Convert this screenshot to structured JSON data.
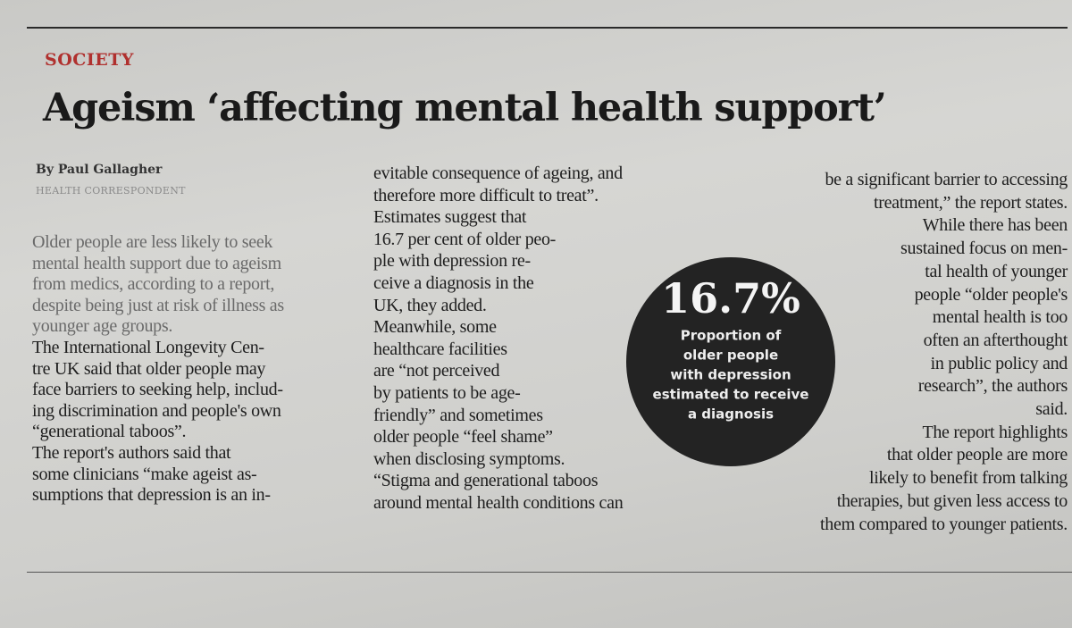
{
  "section": "SOCIETY",
  "headline": "Ageism ‘affecting mental health support’",
  "byline": "By Paul Gallagher",
  "role": "HEALTH CORRESPONDENT",
  "columns": [
    [
      "Older people are less likely to seek",
      "mental health support due to ageism",
      "from medics, according to a report,",
      "despite being just at risk of illness as",
      "younger age groups.",
      "The International Longevity Cen-",
      "tre UK said that older people may",
      "face barriers to seeking help, includ-",
      "ing discrimination and people's own",
      "“generational taboos”.",
      "The report's authors said that",
      "some clinicians “make ageist as-",
      "sumptions that depression is an in-"
    ],
    [
      "evitable consequence of ageing, and",
      "therefore more difficult to treat”.",
      "Estimates suggest that",
      "16.7 per cent of older peo-",
      "ple with depression re-",
      "ceive a diagnosis in the",
      "UK, they added.",
      "Meanwhile, some",
      "healthcare facilities",
      "are “not perceived",
      "by patients to be age-",
      "friendly” and sometimes",
      "older people “feel shame”",
      "when disclosing symptoms.",
      "“Stigma and generational taboos",
      "around mental health conditions can"
    ],
    [
      "be a significant barrier to accessing",
      "treatment,” the report states.",
      "While there has been",
      "sustained focus on men-",
      "tal health of younger",
      "people “older people's",
      "mental health is too",
      "often an afterthought",
      "in public policy and",
      "research”, the authors",
      "said.",
      "The report highlights",
      "that older people are more",
      "likely to benefit from talking",
      "therapies, but given less access to",
      "them compared to younger patients."
    ]
  ],
  "callout": {
    "stat": "16.7%",
    "caption": [
      "Proportion of",
      "older people",
      "with depression",
      "estimated to receive",
      "a diagnosis"
    ]
  }
}
